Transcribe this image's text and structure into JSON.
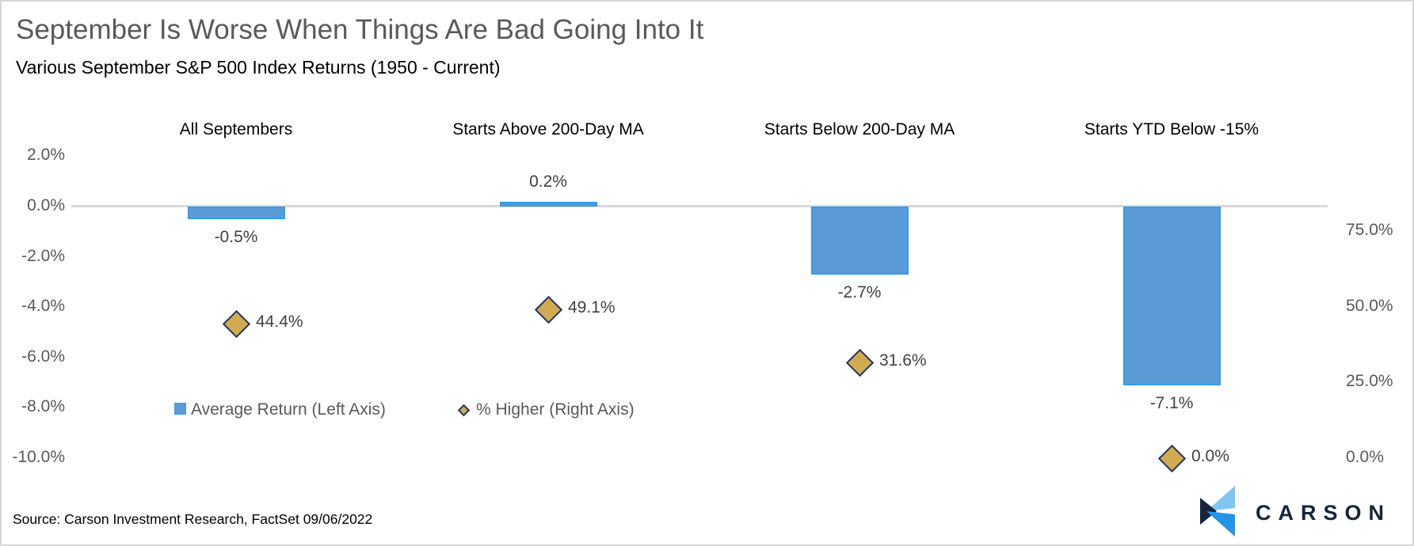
{
  "header": {
    "title": "September Is Worse When Things Are Bad Going Into It",
    "subtitle": "Various September S&P 500 Index Returns (1950 - Current)"
  },
  "chart_data": {
    "type": "bar",
    "subtype": "combo-bar-plus-scatter-diamond",
    "title": "September Is Worse When Things Are Bad Going Into It",
    "subtitle": "Various September S&P 500 Index Returns (1950 - Current)",
    "categories": [
      "All Septembers",
      "Starts Above 200-Day MA",
      "Starts Below 200-Day MA",
      "Starts YTD Below -15%"
    ],
    "series": [
      {
        "name": "Average Return (Left Axis)",
        "type": "bar",
        "axis": "left",
        "marker": "square",
        "values": [
          -0.5,
          0.2,
          -2.7,
          -7.1
        ],
        "labels": [
          "-0.5%",
          "0.2%",
          "-2.7%",
          "-7.1%"
        ],
        "fill": "#5B9BD5",
        "stroke": "#2D9CF4"
      },
      {
        "name": "% Higher (Right Axis)",
        "type": "scatter",
        "axis": "right",
        "marker": "diamond",
        "values": [
          44.4,
          49.1,
          31.6,
          0.0
        ],
        "labels": [
          "44.4%",
          "49.1%",
          "31.6%",
          "0.0%"
        ],
        "fill": "#D2AB50",
        "stroke": "#1F3864"
      }
    ],
    "left_axis": {
      "tick_labels": [
        "2.0%",
        "0.0%",
        "-2.0%",
        "-4.0%",
        "-6.0%",
        "-8.0%",
        "-10.0%"
      ],
      "tick_values": [
        2,
        0,
        -2,
        -4,
        -6,
        -8,
        -10
      ],
      "range": [
        -10,
        2
      ]
    },
    "right_axis": {
      "tick_labels": [
        "75.0%",
        "50.0%",
        "25.0%",
        "0.0%"
      ],
      "tick_values": [
        75,
        50,
        25,
        0
      ],
      "range": [
        0,
        100
      ]
    },
    "grid": "zero-baseline-only",
    "legend_position": "inside-bottom-left"
  },
  "legend": {
    "items": [
      {
        "label": "Average Return (Left Axis)",
        "marker": "square"
      },
      {
        "label": "% Higher (Right Axis)",
        "marker": "diamond"
      }
    ]
  },
  "footer": {
    "source": "Source: Carson Investment Research, FactSet 09/06/2022",
    "logo_text": "CARSON"
  },
  "colors": {
    "title": "#595959",
    "axis_labels": "#595959",
    "data_labels": "#404040",
    "bar_fill": "#5B9BD5",
    "bar_stroke": "#2D9CF4",
    "diamond_fill": "#D2AB50",
    "diamond_stroke": "#1F3864",
    "baseline": "#D9D9D9",
    "logo_navy": "#16243D",
    "logo_light_blue": "#7EC5F2",
    "logo_blue": "#2493E8"
  }
}
